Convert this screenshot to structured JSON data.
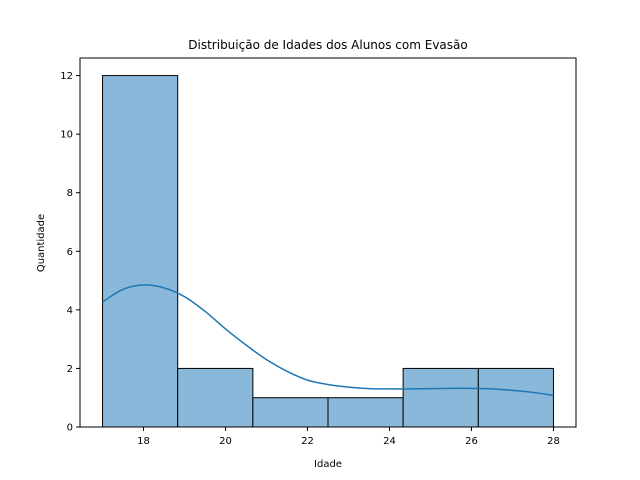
{
  "chart_data": {
    "type": "bar",
    "title": "Distribuição de Idades dos Alunos com Evasão",
    "xlabel": "Idade",
    "ylabel": "Quantidade",
    "xlim": [
      16.45,
      28.55
    ],
    "ylim": [
      0,
      12.6
    ],
    "xticks": [
      18,
      20,
      22,
      24,
      26,
      28
    ],
    "yticks": [
      0,
      2,
      4,
      6,
      8,
      10,
      12
    ],
    "bins": [
      {
        "start": 17.0,
        "end": 18.833,
        "count": 12
      },
      {
        "start": 18.833,
        "end": 20.667,
        "count": 2
      },
      {
        "start": 20.667,
        "end": 22.5,
        "count": 1
      },
      {
        "start": 22.5,
        "end": 24.333,
        "count": 1
      },
      {
        "start": 24.333,
        "end": 26.167,
        "count": 2
      },
      {
        "start": 26.167,
        "end": 28.0,
        "count": 2
      }
    ],
    "kde": {
      "x": [
        17.0,
        17.5,
        18.0,
        18.5,
        19.0,
        19.5,
        20.0,
        20.5,
        21.0,
        21.5,
        22.0,
        22.5,
        23.0,
        23.5,
        24.0,
        24.5,
        25.0,
        25.5,
        26.0,
        26.5,
        27.0,
        27.5,
        28.0
      ],
      "y": [
        4.27,
        4.7,
        4.85,
        4.75,
        4.45,
        3.95,
        3.35,
        2.8,
        2.3,
        1.9,
        1.6,
        1.45,
        1.36,
        1.31,
        1.3,
        1.3,
        1.31,
        1.32,
        1.32,
        1.3,
        1.25,
        1.18,
        1.08
      ]
    },
    "colors": {
      "bar_fill": "#8ab8da",
      "bar_edge": "#000000",
      "kde_line": "#1f77b4"
    },
    "grid": false
  }
}
